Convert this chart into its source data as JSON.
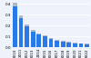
{
  "years": [
    "2010",
    "2011",
    "2012",
    "2013",
    "2014",
    "2015",
    "2016",
    "2017",
    "2018",
    "2019",
    "2020",
    "2021",
    "2022"
  ],
  "values": [
    0.378,
    0.269,
    0.198,
    0.148,
    0.122,
    0.101,
    0.08,
    0.065,
    0.056,
    0.048,
    0.04,
    0.036,
    0.033
  ],
  "error": [
    0.03,
    0.022,
    0.016,
    0.012,
    0.01,
    0.008,
    0.006,
    0.005,
    0.004,
    0.004,
    0.003,
    0.003,
    0.003
  ],
  "bar_color": "#2979e8",
  "error_color": "#b0b8c8",
  "background_color": "#eef2fb",
  "grid_color": "#ffffff",
  "ylim": [
    0,
    0.42
  ],
  "tick_fontsize": 3.0,
  "ytick_labels": [
    "0.0",
    "0.1",
    "0.2",
    "0.3",
    "0.4"
  ]
}
